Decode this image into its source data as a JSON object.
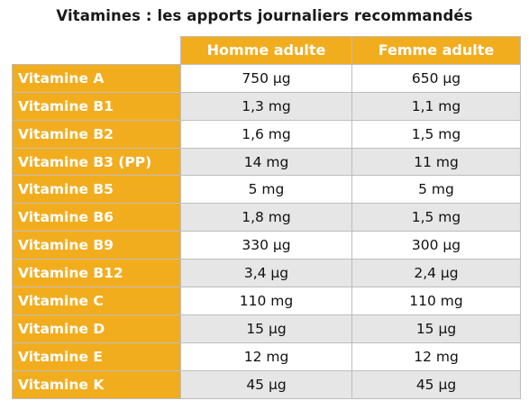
{
  "title": "Vitamines : les apports journaliers recommandés",
  "table": {
    "header": {
      "corner": "",
      "columns": [
        "Homme adulte",
        "Femme adulte"
      ]
    },
    "rows": [
      {
        "name": "Vitamine A",
        "homme": "750 µg",
        "femme": "650 µg"
      },
      {
        "name": "Vitamine B1",
        "homme": "1,3 mg",
        "femme": "1,1 mg"
      },
      {
        "name": "Vitamine B2",
        "homme": "1,6 mg",
        "femme": "1,5 mg"
      },
      {
        "name": "Vitamine B3 (PP)",
        "homme": "14 mg",
        "femme": "11 mg"
      },
      {
        "name": "Vitamine B5",
        "homme": "5 mg",
        "femme": "5 mg"
      },
      {
        "name": "Vitamine B6",
        "homme": "1,8 mg",
        "femme": "1,5 mg"
      },
      {
        "name": "Vitamine B9",
        "homme": "330 µg",
        "femme": "300 µg"
      },
      {
        "name": "Vitamine B12",
        "homme": "3,4 µg",
        "femme": "2,4 µg"
      },
      {
        "name": "Vitamine C",
        "homme": "110 mg",
        "femme": "110 mg"
      },
      {
        "name": "Vitamine D",
        "homme": "15 µg",
        "femme": "15 µg"
      },
      {
        "name": "Vitamine E",
        "homme": "12 mg",
        "femme": "12 mg"
      },
      {
        "name": "Vitamine K",
        "homme": "45 µg",
        "femme": "45 µg"
      }
    ]
  },
  "colors": {
    "header_background": "#f2ad1f",
    "header_text": "#ffffff",
    "stripe_light": "#ffffff",
    "stripe_dark": "#e6e6e6",
    "border": "#bdbdbd"
  }
}
